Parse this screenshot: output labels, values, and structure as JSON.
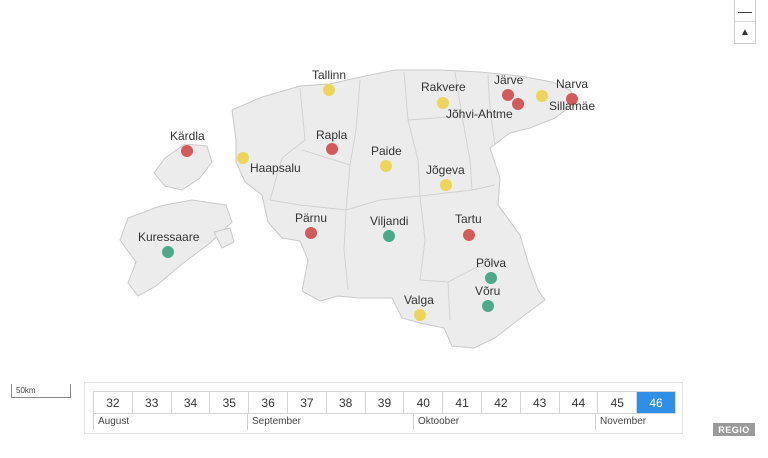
{
  "map": {
    "cities": [
      {
        "name": "Tallinn",
        "status": "yellow"
      },
      {
        "name": "Rakvere",
        "status": "yellow"
      },
      {
        "name": "Järve",
        "status": "red"
      },
      {
        "name": "Jõhvi-Ahtme",
        "status": "red"
      },
      {
        "name": "Narva",
        "status": "red"
      },
      {
        "name": "Sillamäe",
        "status": "yellow"
      },
      {
        "name": "Kärdla",
        "status": "red"
      },
      {
        "name": "Haapsalu",
        "status": "yellow"
      },
      {
        "name": "Rapla",
        "status": "red"
      },
      {
        "name": "Paide",
        "status": "yellow"
      },
      {
        "name": "Jõgeva",
        "status": "yellow"
      },
      {
        "name": "Pärnu",
        "status": "red"
      },
      {
        "name": "Viljandi",
        "status": "green"
      },
      {
        "name": "Tartu",
        "status": "red"
      },
      {
        "name": "Kuressaare",
        "status": "green"
      },
      {
        "name": "Põlva",
        "status": "green"
      },
      {
        "name": "Võru",
        "status": "green"
      },
      {
        "name": "Valga",
        "status": "yellow"
      }
    ],
    "colors": {
      "red": "#d35b5b",
      "yellow": "#ecd55a",
      "green": "#4ea88a",
      "land": "#ececec",
      "border": "#c9c9c9"
    }
  },
  "zoom": {
    "zoom_out_icon": "minus-icon",
    "reset_icon": "compass-icon"
  },
  "scale": {
    "label": "50km"
  },
  "timeline": {
    "weeks": [
      "32",
      "33",
      "34",
      "35",
      "36",
      "37",
      "38",
      "39",
      "40",
      "41",
      "42",
      "43",
      "44",
      "45",
      "46"
    ],
    "active_week": "46",
    "months": [
      "August",
      "September",
      "Oktoober",
      "November"
    ]
  },
  "logo": {
    "text": "REGIO"
  }
}
